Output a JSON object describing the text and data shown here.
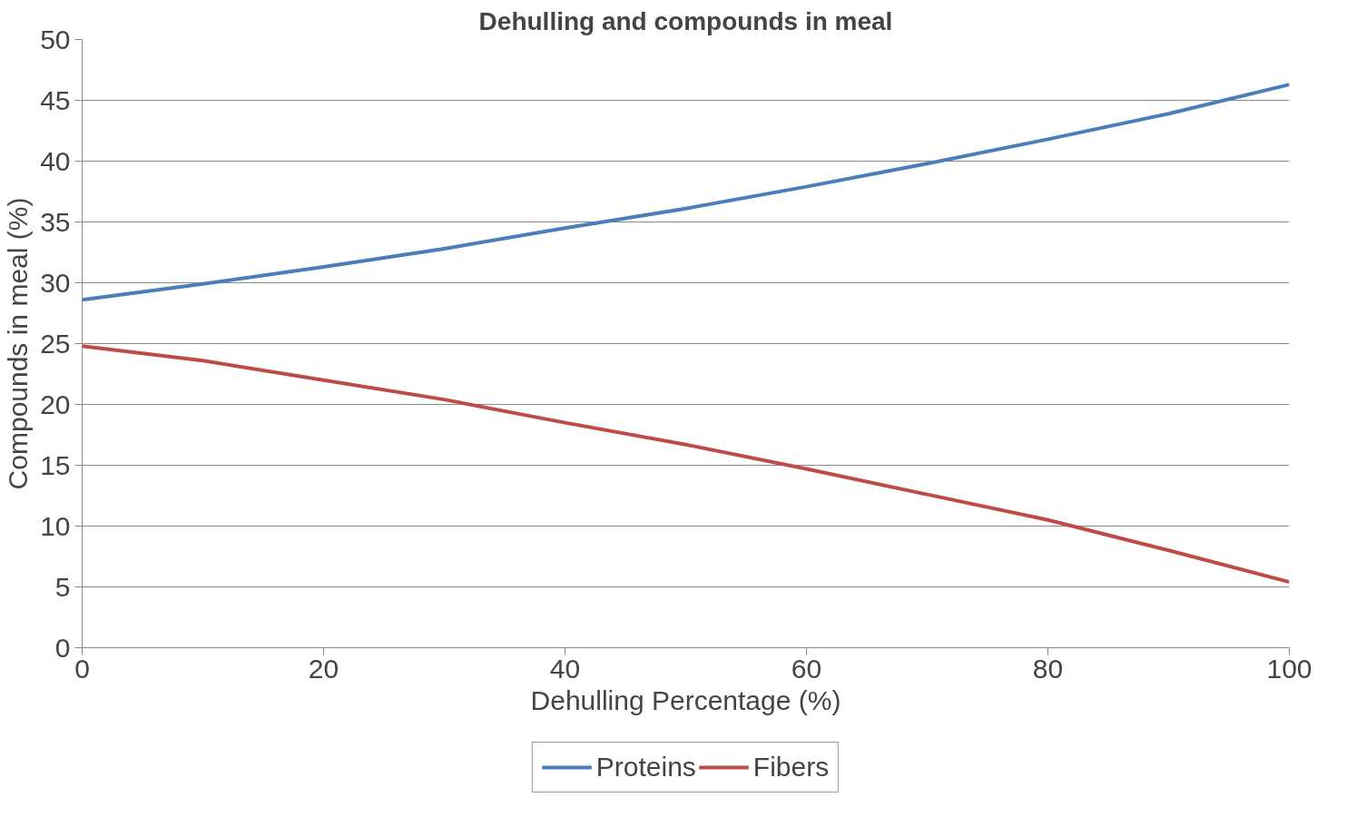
{
  "chart_data": {
    "type": "line",
    "title": "Dehulling and compounds in meal",
    "xlabel": "Dehulling Percentage (%)",
    "ylabel": "Compounds in meal (%)",
    "x": [
      0,
      10,
      20,
      30,
      40,
      50,
      60,
      70,
      80,
      90,
      100
    ],
    "series": [
      {
        "name": "Proteins",
        "color": "#4a7ebb",
        "values": [
          28.6,
          29.9,
          31.3,
          32.8,
          34.5,
          36.1,
          37.9,
          39.8,
          41.8,
          43.9,
          46.3
        ]
      },
      {
        "name": "Fibers",
        "color": "#be4b48",
        "values": [
          24.8,
          23.6,
          22.0,
          20.4,
          18.5,
          16.7,
          14.7,
          12.6,
          10.5,
          8.0,
          5.4
        ]
      }
    ],
    "xlim": [
      0,
      100
    ],
    "xticks": [
      0,
      20,
      40,
      60,
      80,
      100
    ],
    "ylim": [
      0,
      50
    ],
    "yticks": [
      0,
      5,
      10,
      15,
      20,
      25,
      30,
      35,
      40,
      45,
      50
    ],
    "grid": "y",
    "legend": "bottom",
    "marker": "none",
    "line_style": "solid"
  }
}
